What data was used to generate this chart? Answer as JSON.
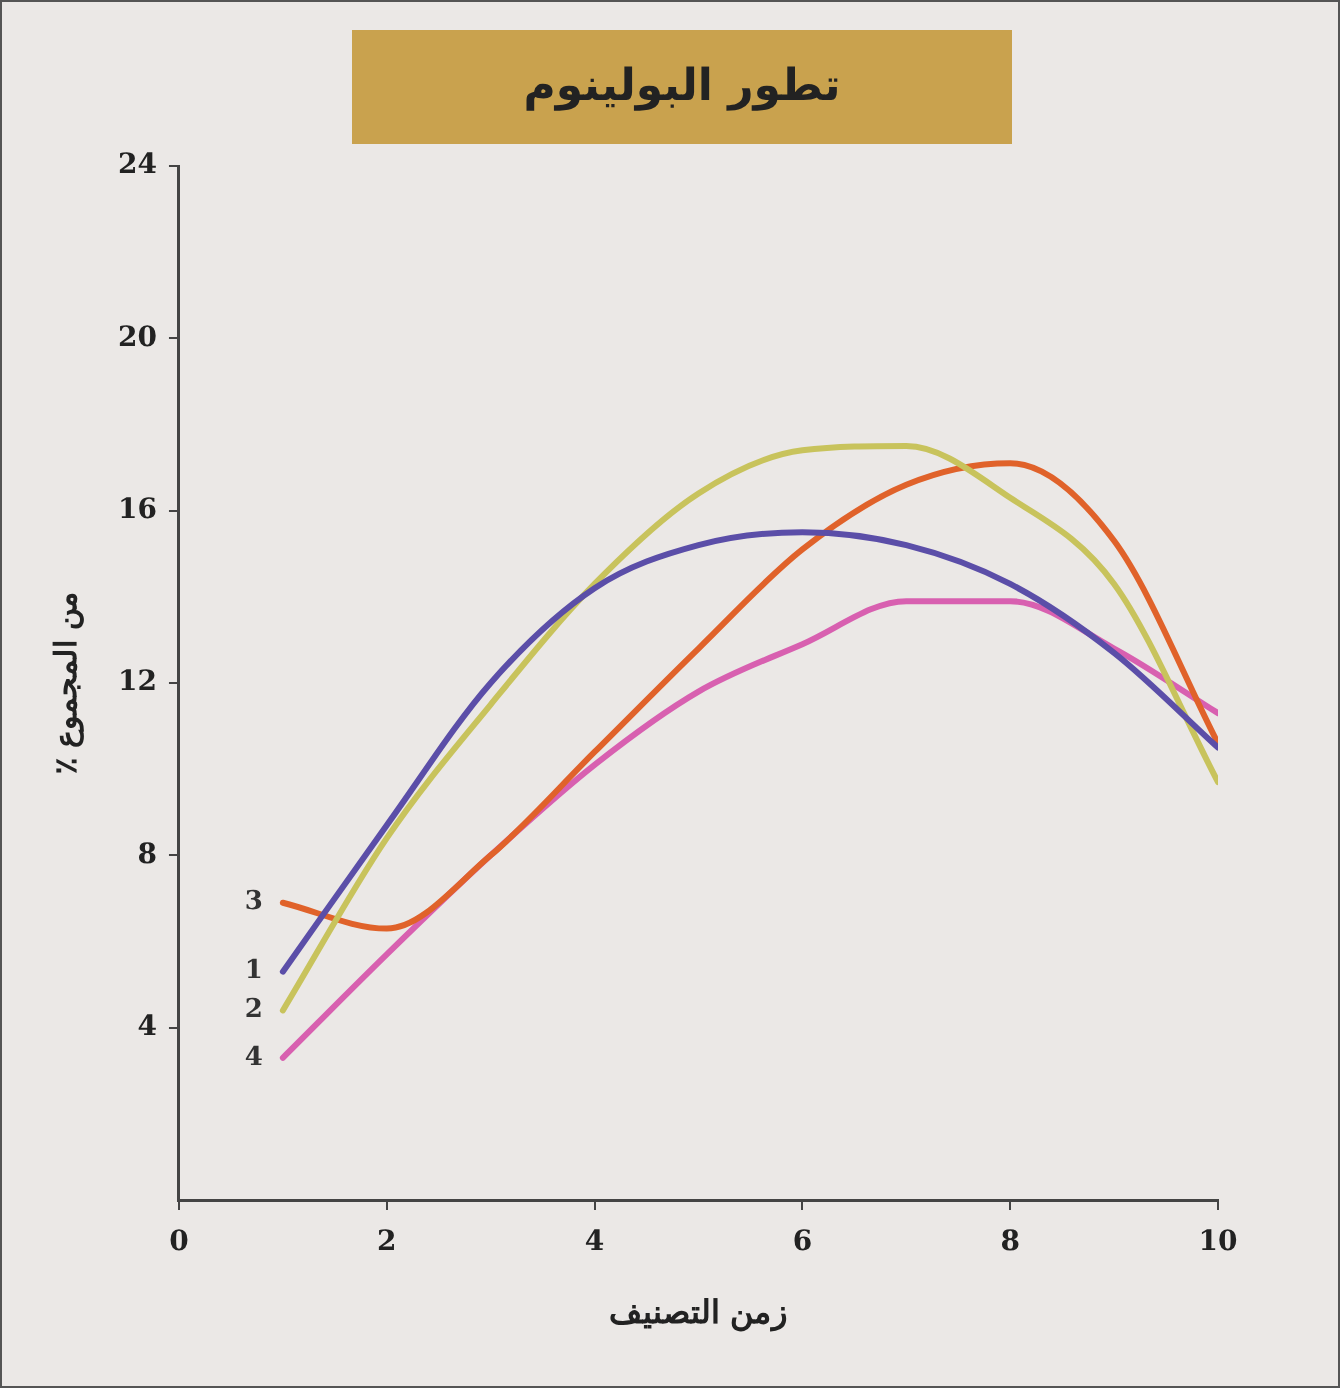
{
  "chart_data": {
    "type": "line",
    "title": "تطور البولينوم",
    "xlabel": "زمن التصنيف",
    "ylabel": "٪ من المجموع",
    "x": [
      1,
      2,
      3,
      4,
      5,
      6,
      7,
      8,
      9,
      10
    ],
    "series": [
      {
        "name": "1",
        "color": "#5b4ea8",
        "values": [
          5.3,
          8.7,
          12.0,
          14.2,
          15.2,
          15.5,
          15.2,
          14.3,
          12.7,
          10.5
        ]
      },
      {
        "name": "2",
        "color": "#c8c35c",
        "values": [
          4.4,
          8.4,
          11.5,
          14.3,
          16.4,
          17.4,
          17.5,
          16.3,
          14.3,
          9.7
        ]
      },
      {
        "name": "3",
        "color": "#e0622a",
        "values": [
          6.9,
          6.3,
          8.0,
          10.4,
          12.8,
          15.1,
          16.6,
          17.1,
          15.3,
          10.6
        ]
      },
      {
        "name": "4",
        "color": "#d860b0",
        "values": [
          3.3,
          5.7,
          8.0,
          10.1,
          11.8,
          12.9,
          13.9,
          13.9,
          12.8,
          11.3
        ]
      }
    ],
    "xlim": [
      0,
      10
    ],
    "xticks": [
      0,
      2,
      4,
      6,
      8,
      10
    ],
    "ylim": [
      0,
      24
    ],
    "yticks": [
      4,
      8,
      12,
      16,
      20,
      24
    ],
    "grid": false,
    "legend": false,
    "marker": "none",
    "line_style": "solid"
  }
}
